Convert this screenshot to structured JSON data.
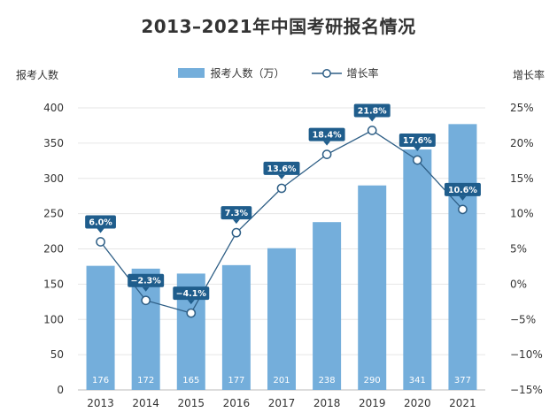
{
  "chart_data": {
    "type": "bar",
    "title": "2013–2021年中国考研报名情况",
    "categories": [
      "2013",
      "2014",
      "2015",
      "2016",
      "2017",
      "2018",
      "2019",
      "2020",
      "2021"
    ],
    "series": [
      {
        "name": "报考人数（万）",
        "type": "bar",
        "axis": "left",
        "values": [
          176,
          172,
          165,
          177,
          201,
          238,
          290,
          341,
          377
        ],
        "labels": [
          "176",
          "172",
          "165",
          "177",
          "201",
          "238",
          "290",
          "341",
          "377"
        ]
      },
      {
        "name": "增长率",
        "type": "line",
        "axis": "right",
        "values": [
          6.0,
          -2.3,
          -4.1,
          7.3,
          13.6,
          18.4,
          21.8,
          17.6,
          10.6
        ],
        "labels": [
          "6.0%",
          "−2.3%",
          "−4.1%",
          "7.3%",
          "13.6%",
          "18.4%",
          "21.8%",
          "17.6%",
          "10.6%"
        ]
      }
    ],
    "ylabel_left": "报考人数",
    "ylabel_right": "增长率",
    "ylim_left": [
      0,
      400
    ],
    "ylim_right": [
      -15,
      25
    ],
    "yticks_left": [
      "0",
      "50",
      "100",
      "150",
      "200",
      "250",
      "300",
      "350",
      "400"
    ],
    "yticks_right": [
      "−15%",
      "−10%",
      "−5%",
      "0%",
      "5%",
      "10%",
      "15%",
      "20%",
      "25%"
    ],
    "grid": true,
    "legend_position": "top-center",
    "colors": {
      "bar": "#74aedb",
      "line": "#2f5f86",
      "label_box": "#1f5d8c",
      "grid": "#e6e6e6"
    }
  }
}
